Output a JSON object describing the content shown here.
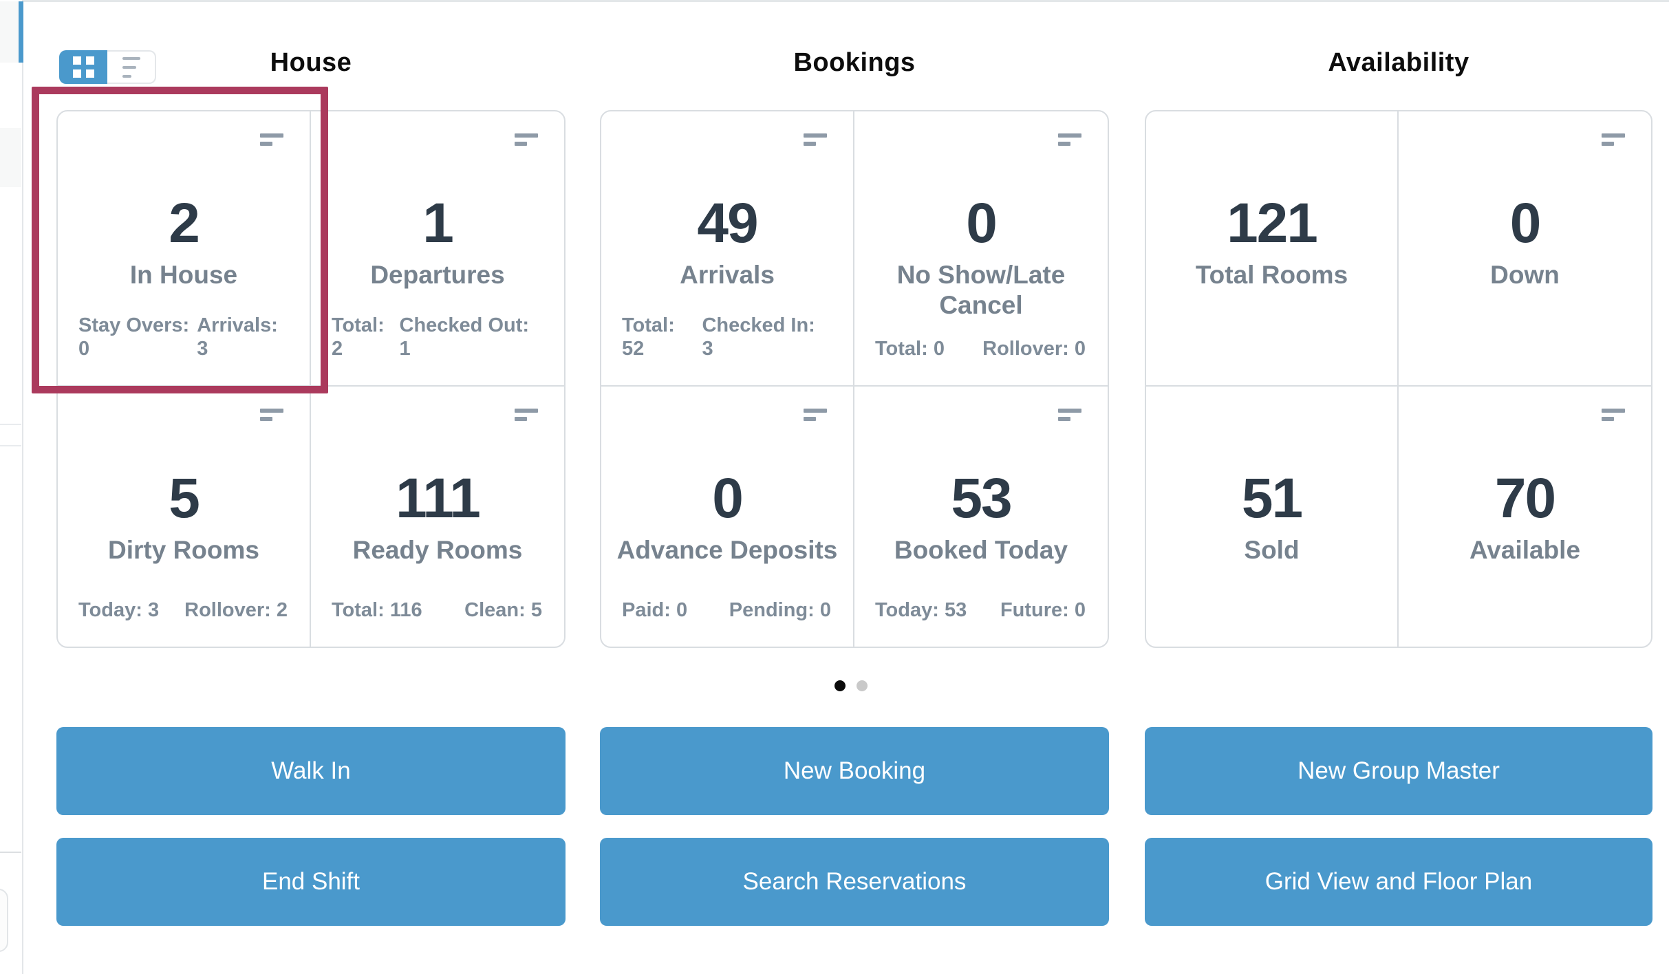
{
  "colors": {
    "accent-blue": "#4a99cc",
    "highlight-red": "#ab3a5d",
    "number-ink": "#2e3b48",
    "label-ink": "#76828e",
    "stat-ink": "#7e8b98",
    "panel-border": "#d9dde1",
    "icon-bar": "#8e9aa7"
  },
  "view_toggle": {
    "grid_icon": "grid-squares-icon",
    "list_icon": "list-lines-icon",
    "active": "grid"
  },
  "sections": [
    {
      "header": "House",
      "cards": [
        {
          "value": "2",
          "label": "In House",
          "stat_left": "Stay Overs: 0",
          "stat_right": "Arrivals: 3",
          "menu_icon": "bars-icon",
          "highlighted": true
        },
        {
          "value": "1",
          "label": "Departures",
          "stat_left": "Total: 2",
          "stat_right": "Checked Out: 1",
          "menu_icon": "bars-icon"
        },
        {
          "value": "5",
          "label": "Dirty Rooms",
          "stat_left": "Today: 3",
          "stat_right": "Rollover: 2",
          "menu_icon": "bars-icon"
        },
        {
          "value": "111",
          "label": "Ready Rooms",
          "stat_left": "Total: 116",
          "stat_right": "Clean: 5",
          "menu_icon": "bars-icon"
        }
      ]
    },
    {
      "header": "Bookings",
      "cards": [
        {
          "value": "49",
          "label": "Arrivals",
          "stat_left": "Total: 52",
          "stat_right": "Checked In: 3",
          "menu_icon": "bars-icon"
        },
        {
          "value": "0",
          "label": "No Show/Late Cancel",
          "stat_left": "Total: 0",
          "stat_right": "Rollover: 0",
          "menu_icon": "bars-icon"
        },
        {
          "value": "0",
          "label": "Advance Deposits",
          "stat_left": "Paid: 0",
          "stat_right": "Pending: 0",
          "menu_icon": "bars-icon"
        },
        {
          "value": "53",
          "label": "Booked Today",
          "stat_left": "Today: 53",
          "stat_right": "Future: 0",
          "menu_icon": "bars-icon"
        }
      ]
    },
    {
      "header": "Availability",
      "cards": [
        {
          "value": "121",
          "label": "Total Rooms"
        },
        {
          "value": "0",
          "label": "Down",
          "menu_icon": "bars-icon"
        },
        {
          "value": "51",
          "label": "Sold"
        },
        {
          "value": "70",
          "label": "Available",
          "menu_icon": "bars-icon"
        }
      ]
    }
  ],
  "pagination": {
    "total_pages": 2,
    "active_page": 1
  },
  "actions": [
    {
      "label": "Walk In"
    },
    {
      "label": "New Booking"
    },
    {
      "label": "New Group Master"
    },
    {
      "label": "End Shift"
    },
    {
      "label": "Search Reservations"
    },
    {
      "label": "Grid View and Floor Plan"
    }
  ]
}
